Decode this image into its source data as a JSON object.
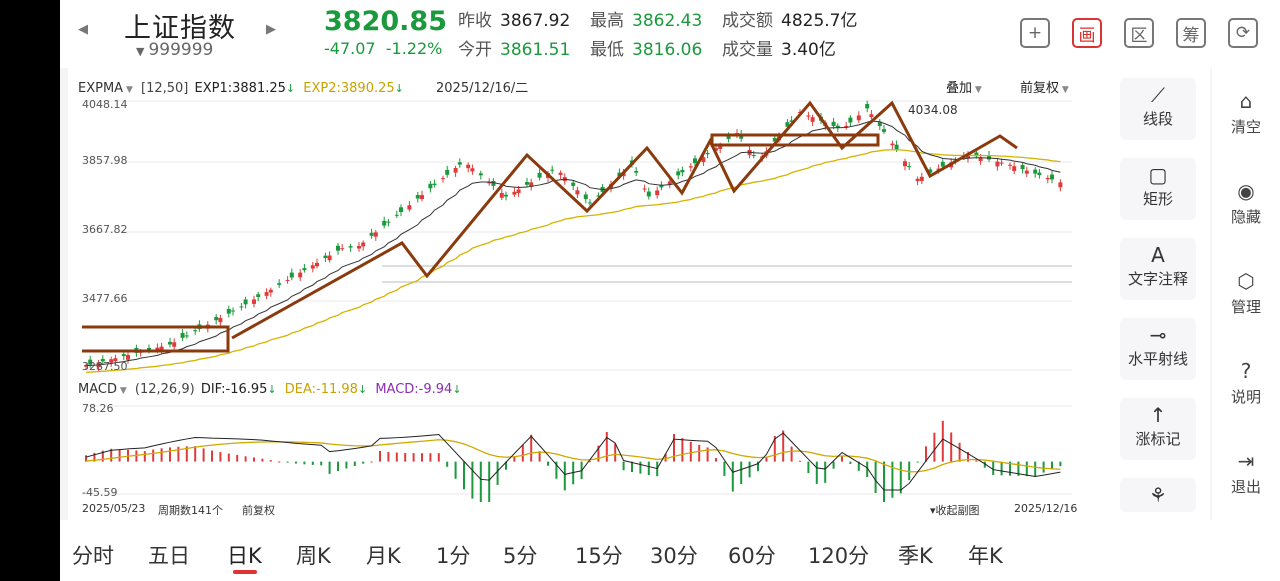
{
  "header": {
    "prev_arrow": "◀",
    "next_arrow": "▶",
    "name": "上证指数",
    "code_marker": "▼",
    "code": "999999",
    "price": "3820.85",
    "change": "-47.07",
    "change_pct": "-1.22%",
    "stats": [
      {
        "label": "昨收",
        "value": "3867.92",
        "color": "dark"
      },
      {
        "label": "最高",
        "value": "3862.43",
        "color": "green"
      },
      {
        "label": "成交额",
        "value": "4825.7亿",
        "color": "dark"
      },
      {
        "label": "今开",
        "value": "3861.51",
        "color": "green"
      },
      {
        "label": "最低",
        "value": "3816.06",
        "color": "green"
      },
      {
        "label": "成交量",
        "value": "3.40亿",
        "color": "dark"
      }
    ],
    "buttons": [
      {
        "name": "add-button",
        "icon": "plus-icon",
        "glyph": "+",
        "active": false
      },
      {
        "name": "draw-button",
        "icon": "draw-icon",
        "glyph": "画",
        "active": true
      },
      {
        "name": "range-button",
        "icon": "range-icon",
        "glyph": "区",
        "active": false
      },
      {
        "name": "chip-button",
        "icon": "chip-icon",
        "glyph": "筹",
        "active": false
      },
      {
        "name": "rotate-button",
        "icon": "rotate-screen-icon",
        "glyph": "⟳",
        "active": false
      }
    ]
  },
  "main_legend": {
    "indicator": "EXPMA",
    "params": "[12,50]",
    "exp1": "EXP1:3881.25",
    "exp2": "EXP2:3890.25",
    "date": "2025/12/16/二",
    "overlay": "叠加",
    "adjust": "前复权"
  },
  "main_axis": {
    "labels": [
      "4048.14",
      "3857.98",
      "3667.82",
      "3477.66",
      "3287.50"
    ]
  },
  "high_marker": "4034.08",
  "macd_legend": {
    "indicator": "MACD",
    "params": "(12,26,9)",
    "dif": "DIF:-16.95",
    "dea": "DEA:-11.98",
    "macd": "MACD:-9.94"
  },
  "macd_axis": {
    "labels": [
      "78.26",
      "-45.59"
    ]
  },
  "footer_info": {
    "start_date": "2025/05/23",
    "period_count": "周期数141个",
    "adjust": "前复权",
    "collapse": "收起副图",
    "end_date": "2025/12/16"
  },
  "draw_tools": [
    {
      "name": "tool-segment",
      "icon": "line-segment-icon",
      "glyph": "⟋",
      "label": "线段"
    },
    {
      "name": "tool-rectangle",
      "icon": "rectangle-icon",
      "glyph": "▢",
      "label": "矩形"
    },
    {
      "name": "tool-text",
      "icon": "text-annotation-icon",
      "glyph": "A",
      "label": "文字注释"
    },
    {
      "name": "tool-ray",
      "icon": "horizontal-ray-icon",
      "glyph": "⊸",
      "label": "水平射线"
    },
    {
      "name": "tool-mark",
      "icon": "arrow-up-icon",
      "glyph": "↑",
      "label": "涨标记"
    },
    {
      "name": "tool-more",
      "icon": "more-tools-icon",
      "glyph": "⚘",
      "label": ""
    }
  ],
  "right_tools": [
    {
      "name": "clear-button",
      "icon": "broom-icon",
      "glyph": "⌂",
      "label": "清空"
    },
    {
      "name": "hide-button",
      "icon": "eye-icon",
      "glyph": "◉",
      "label": "隐藏"
    },
    {
      "name": "manage-button",
      "icon": "manage-icon",
      "glyph": "⬡",
      "label": "管理"
    },
    {
      "name": "help-button",
      "icon": "help-icon",
      "glyph": "?",
      "label": "说明"
    },
    {
      "name": "exit-button",
      "icon": "exit-icon",
      "glyph": "⇥",
      "label": "退出"
    }
  ],
  "collapse_arrow": "‹",
  "periods": [
    "分时",
    "五日",
    "日K",
    "周K",
    "月K",
    "1分",
    "5分",
    "15分",
    "30分",
    "60分",
    "120分",
    "季K",
    "年K"
  ],
  "active_period": "日K",
  "colors": {
    "up": "#e03a3a",
    "down": "#1a9a3c",
    "exp1": "#333333",
    "exp2": "#d4b400",
    "annotation": "#8b3a0e",
    "dif": "#222222",
    "dea": "#d0a800",
    "macd": "#8a2fb5"
  },
  "chart_data": [
    {
      "type": "candlestick",
      "title": "",
      "x": [
        "2025/05/23",
        "2025/12/16"
      ],
      "ylim": [
        3287.5,
        4048.14
      ],
      "yticks": [
        3287.5,
        3477.66,
        3667.82,
        3857.98,
        4048.14
      ],
      "series": [
        {
          "name": "EXP1",
          "last": 3881.25
        },
        {
          "name": "EXP2",
          "last": 3890.25
        }
      ],
      "last_bar": {
        "open": 3861.51,
        "high": 3862.43,
        "low": 3816.06,
        "close": 3820.85
      },
      "annotation_high": 4034.08
    },
    {
      "type": "bar",
      "title": "",
      "ylim": [
        -45.59,
        78.26
      ],
      "series": [
        {
          "name": "DIF",
          "last": -16.95
        },
        {
          "name": "DEA",
          "last": -11.98
        },
        {
          "name": "MACD",
          "last": -9.94
        }
      ]
    }
  ]
}
